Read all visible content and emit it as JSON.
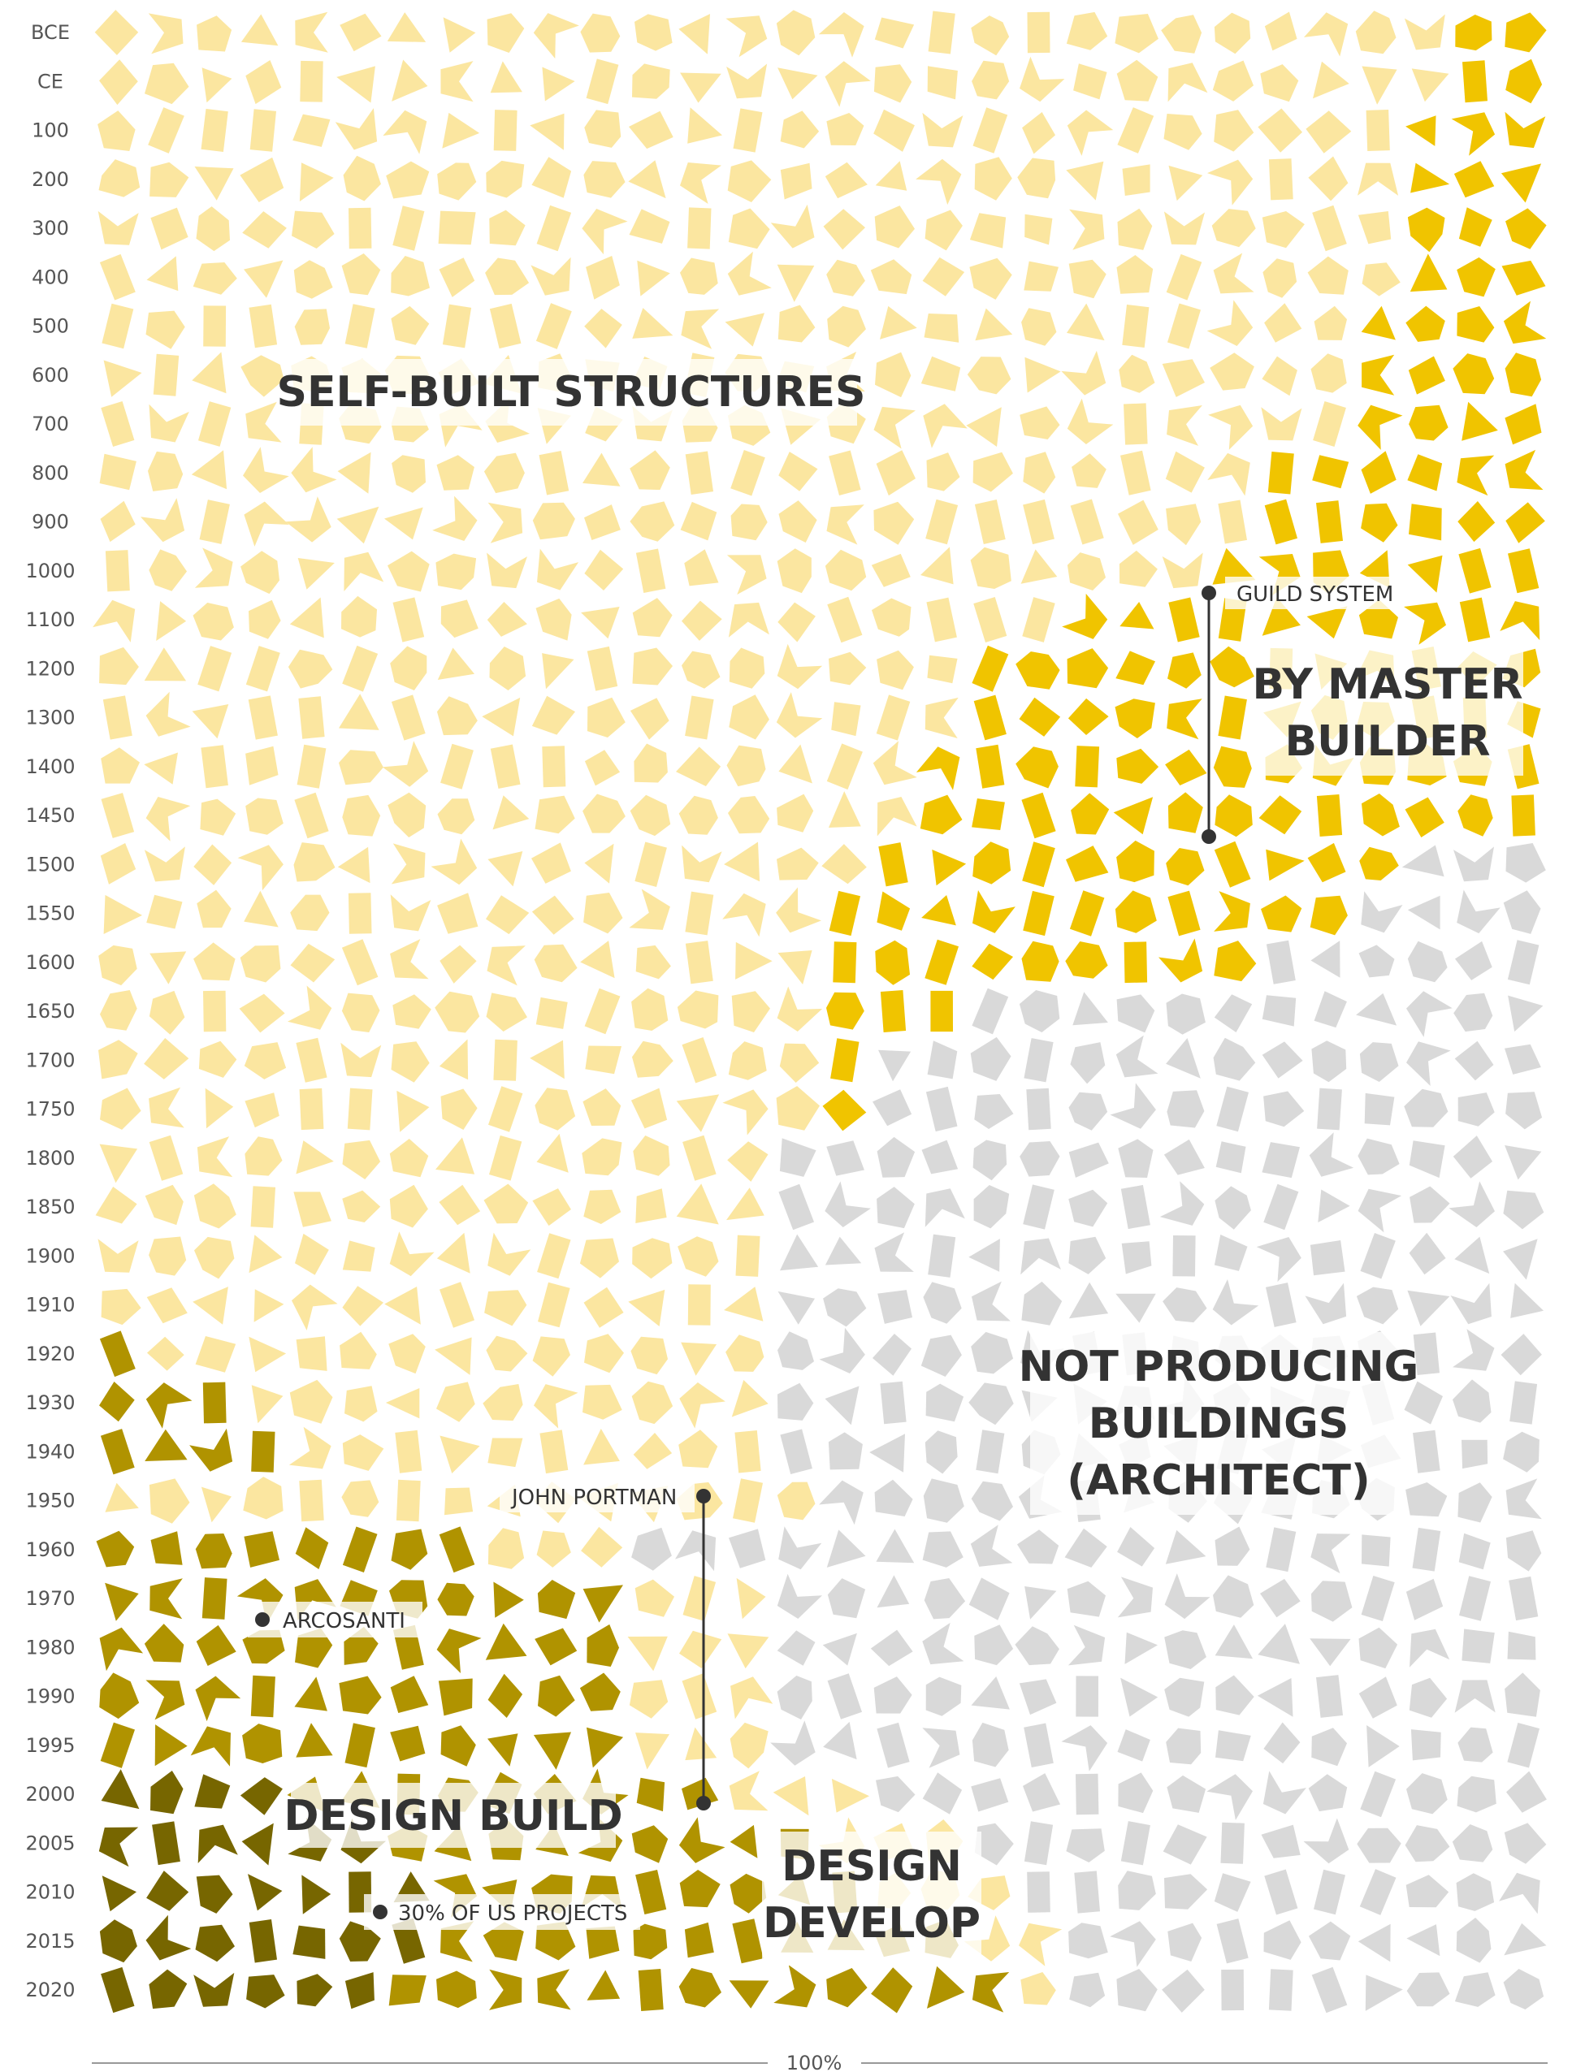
{
  "chart_data": {
    "type": "area",
    "note": "stacked 100% share of who produces buildings over time",
    "y_axis_labels": [
      "BCE",
      "CE",
      "100",
      "200",
      "300",
      "400",
      "500",
      "600",
      "700",
      "800",
      "900",
      "1000",
      "1100",
      "1200",
      "1300",
      "1400",
      "1450",
      "1500",
      "1550",
      "1600",
      "1650",
      "1700",
      "1750",
      "1800",
      "1850",
      "1900",
      "1910",
      "1920",
      "1930",
      "1940",
      "1950",
      "1960",
      "1970",
      "1980",
      "1990",
      "1995",
      "2000",
      "2005",
      "2010",
      "2015",
      "2020"
    ],
    "x_axis_label": "100%",
    "categories": [
      "SELF-BUILT STRUCTURES",
      "BY MASTER BUILDER",
      "NOT PRODUCING BUILDINGS (ARCHITECT)",
      "DESIGN BUILD",
      "DESIGN DEVELOP"
    ],
    "colors": {
      "self_built": "#FBE6A0",
      "master_builder": "#F0C400",
      "architect": "#D9D9D9",
      "design_build": "#B09300",
      "design_develop": "#776600"
    },
    "grid_columns": 30,
    "series": [
      {
        "name": "design_develop",
        "per_row": [
          0,
          0,
          0,
          0,
          0,
          0,
          0,
          0,
          0,
          0,
          0,
          0,
          0,
          0,
          0,
          0,
          0,
          0,
          0,
          0,
          0,
          0,
          0,
          0,
          0,
          0,
          0,
          0,
          0,
          0,
          0,
          0,
          0,
          0,
          0,
          0,
          4,
          6,
          7,
          7,
          6
        ]
      },
      {
        "name": "design_build",
        "per_row": [
          0,
          0,
          0,
          0,
          0,
          0,
          0,
          0,
          0,
          0,
          0,
          0,
          0,
          0,
          0,
          0,
          0,
          0,
          0,
          0,
          0,
          0,
          0,
          0,
          0,
          0,
          0,
          1,
          3,
          4,
          0,
          8,
          11,
          11,
          11,
          11,
          9,
          9,
          9,
          11,
          13
        ]
      },
      {
        "name": "self_built",
        "per_row": [
          28,
          28,
          27,
          27,
          27,
          27,
          26,
          26,
          26,
          24,
          24,
          23,
          20,
          18,
          18,
          17,
          17,
          16,
          15,
          15,
          15,
          15,
          15,
          14,
          14,
          14,
          14,
          13,
          11,
          10,
          15,
          3,
          3,
          3,
          3,
          3,
          3,
          3,
          3,
          2,
          1
        ]
      },
      {
        "name": "master_builder",
        "per_row": [
          2,
          2,
          3,
          3,
          3,
          3,
          4,
          4,
          4,
          6,
          6,
          7,
          10,
          12,
          12,
          13,
          13,
          11,
          11,
          9,
          3,
          1,
          1,
          0,
          0,
          0,
          0,
          0,
          0,
          0,
          0,
          0,
          0,
          0,
          0,
          0,
          0,
          0,
          0,
          0,
          0
        ]
      },
      {
        "name": "architect",
        "per_row": [
          0,
          0,
          0,
          0,
          0,
          0,
          0,
          0,
          0,
          0,
          0,
          0,
          0,
          0,
          0,
          0,
          0,
          3,
          4,
          6,
          12,
          14,
          14,
          16,
          16,
          16,
          16,
          16,
          16,
          16,
          15,
          19,
          16,
          16,
          16,
          16,
          14,
          12,
          11,
          10,
          10
        ]
      }
    ],
    "labels": [
      {
        "id": "self_built",
        "text": "SELF-BUILT STRUCTURES"
      },
      {
        "id": "master_builder_1",
        "text": "BY MASTER"
      },
      {
        "id": "master_builder_2",
        "text": "BUILDER"
      },
      {
        "id": "architect_1",
        "text": "NOT PRODUCING"
      },
      {
        "id": "architect_2",
        "text": "BUILDINGS"
      },
      {
        "id": "architect_3",
        "text": "(ARCHITECT)"
      },
      {
        "id": "design_build",
        "text": "DESIGN BUILD"
      },
      {
        "id": "design_develop_1",
        "text": "DESIGN"
      },
      {
        "id": "design_develop_2",
        "text": "DEVELOP"
      }
    ],
    "annotations": [
      {
        "id": "guild",
        "text": "GUILD SYSTEM",
        "from": "1100",
        "to": "1450"
      },
      {
        "id": "portman",
        "text": "JOHN PORTMAN",
        "from": "1950",
        "to": "2000"
      },
      {
        "id": "arcosanti",
        "text": "ARCOSANTI",
        "at": "1970"
      },
      {
        "id": "percent30",
        "text": "30% OF US PROJECTS",
        "at": "2010"
      }
    ]
  }
}
